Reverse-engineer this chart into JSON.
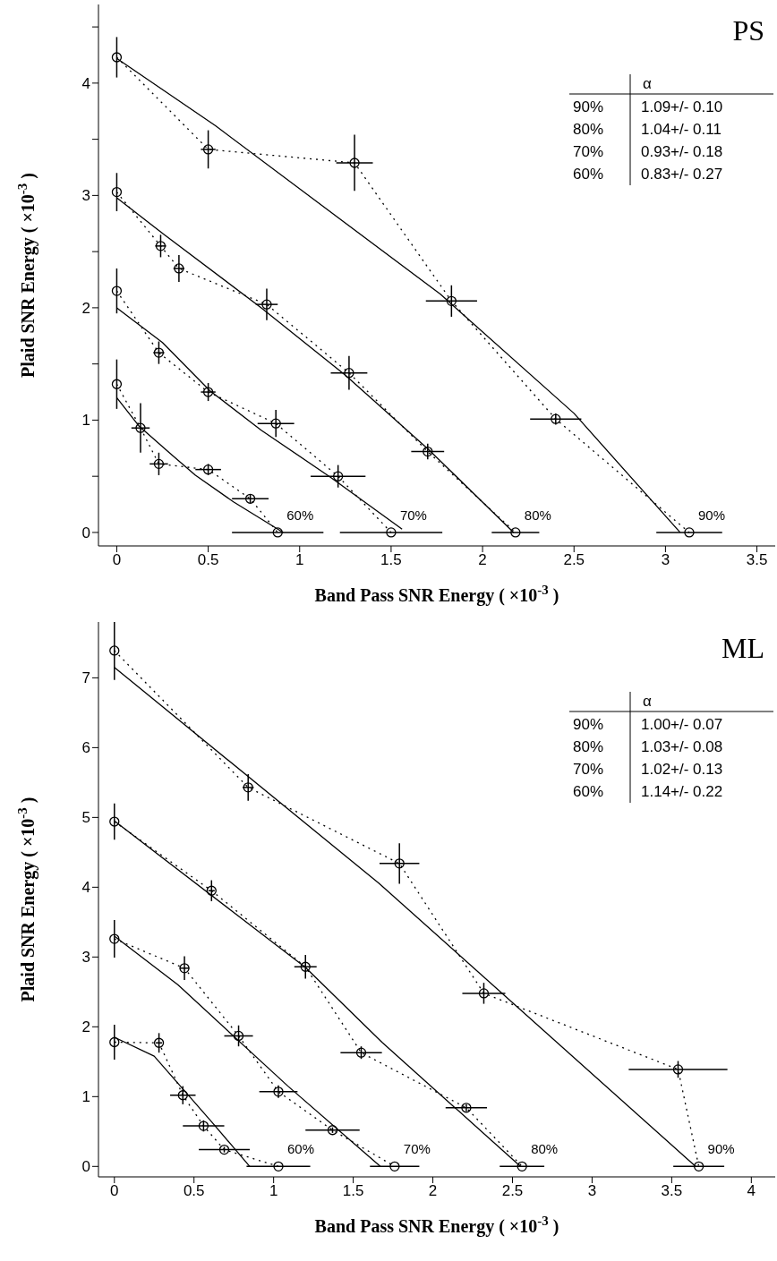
{
  "chart_data": [
    {
      "type": "line",
      "title": "PS",
      "xlabel": "Band Pass SNR Energy ( ×10$^{-3}$ )",
      "ylabel": "Plaid SNR Energy ( ×10$^{-3}$ )",
      "xlim": [
        -0.1,
        3.6
      ],
      "ylim": [
        -0.12,
        4.7
      ],
      "xticks": [
        0,
        0.5,
        1,
        1.5,
        2,
        2.5,
        3,
        3.5
      ],
      "yticks": [
        0,
        {
          "value": 0.5,
          "label": null
        },
        1,
        {
          "value": 1.5,
          "label": null
        },
        2,
        {
          "value": 2.5,
          "label": null
        },
        3,
        {
          "value": 3.5,
          "label": null
        },
        4,
        {
          "value": 4.5,
          "label": null
        }
      ],
      "annotations": [
        "α",
        "90%",
        "1.09+/- 0.10",
        "80%",
        "1.04+/- 0.11",
        "70%",
        "0.93+/- 0.18",
        "60%",
        "0.83+/- 0.27",
        {
          "text": "60%",
          "x": 0.88,
          "y": 0
        },
        {
          "text": "70%",
          "x": 1.5,
          "y": 0
        },
        {
          "text": "80%",
          "x": 2.18,
          "y": 0
        },
        {
          "text": "90%",
          "x": 3.13,
          "y": 0
        }
      ],
      "series": [
        {
          "color": "#000000",
          "line_style": "dotted",
          "marker": "circle",
          "x": [
            0,
            0.5,
            1.3,
            1.83,
            2.4,
            3.13
          ],
          "values": [
            4.23,
            3.41,
            3.29,
            2.06,
            1.01,
            0
          ],
          "errors": [
            0.18,
            0.17,
            0.25,
            0.14,
            0.05,
            null
          ],
          "xerrors": [
            null,
            0.04,
            0.1,
            0.14,
            0.14,
            0.18
          ]
        },
        {
          "color": "#000000",
          "line_style": "dotted",
          "marker": "circle",
          "x": [
            0,
            0.24,
            0.34,
            0.82,
            1.27,
            1.7,
            2.18
          ],
          "values": [
            3.03,
            2.55,
            2.35,
            2.03,
            1.42,
            0.72,
            0
          ],
          "errors": [
            0.17,
            0.1,
            0.12,
            0.14,
            0.15,
            0.07,
            null
          ],
          "xerrors": [
            null,
            0.03,
            0.03,
            0.06,
            0.1,
            0.09,
            0.13
          ]
        },
        {
          "color": "#000000",
          "line_style": "dotted",
          "marker": "circle",
          "x": [
            0,
            0.23,
            0.5,
            0.87,
            1.21,
            1.5
          ],
          "values": [
            2.15,
            1.6,
            1.25,
            0.97,
            0.5,
            0
          ],
          "errors": [
            0.2,
            0.1,
            0.08,
            0.12,
            0.1,
            null
          ],
          "xerrors": [
            null,
            0.03,
            0.04,
            0.1,
            0.15,
            0.28
          ]
        },
        {
          "color": "#000000",
          "line_style": "dotted",
          "marker": "circle",
          "x": [
            0,
            0.13,
            0.23,
            0.5,
            0.73,
            0.88
          ],
          "values": [
            1.32,
            0.93,
            0.61,
            0.56,
            0.3,
            0
          ],
          "errors": [
            0.22,
            0.22,
            0.1,
            0.05,
            0.04,
            null
          ],
          "xerrors": [
            null,
            0.05,
            0.05,
            0.07,
            0.1,
            0.25
          ]
        },
        {
          "color": "#000000",
          "line_style": "solid",
          "marker": "none",
          "x": [
            0,
            0.54,
            1.77,
            2.5,
            3.08
          ],
          "values": [
            4.22,
            3.62,
            2.12,
            1.06,
            0
          ]
        },
        {
          "color": "#000000",
          "line_style": "solid",
          "marker": "none",
          "x": [
            0,
            0.26,
            0.79,
            1.25,
            1.71,
            2.17
          ],
          "values": [
            2.98,
            2.65,
            2.0,
            1.4,
            0.73,
            0
          ]
        },
        {
          "color": "#000000",
          "line_style": "solid",
          "marker": "none",
          "x": [
            0,
            0.25,
            0.51,
            0.79,
            1.17,
            1.56
          ],
          "values": [
            2.0,
            1.69,
            1.26,
            0.91,
            0.49,
            0.03
          ]
        },
        {
          "color": "#000000",
          "line_style": "solid",
          "marker": "none",
          "x": [
            0,
            0.12,
            0.28,
            0.43,
            0.64,
            0.91
          ],
          "values": [
            1.2,
            0.95,
            0.72,
            0.51,
            0.27,
            0
          ]
        }
      ]
    },
    {
      "type": "line",
      "title": "ML",
      "xlabel": "Band Pass SNR Energy ( ×10$^{-3}$ )",
      "ylabel": "Plaid SNR Energy ( ×10$^{-3}$ )",
      "xlim": [
        -0.1,
        4.15
      ],
      "ylim": [
        -0.15,
        7.8
      ],
      "xticks": [
        0,
        0.5,
        1,
        1.5,
        2,
        2.5,
        3,
        3.5,
        4
      ],
      "yticks": [
        0,
        1,
        2,
        3,
        4,
        5,
        6,
        7
      ],
      "annotations": [
        "α",
        "90%",
        "1.00+/- 0.07",
        "80%",
        "1.03+/- 0.08",
        "70%",
        "1.02+/- 0.13",
        "60%",
        "1.14+/- 0.22",
        {
          "text": "60%",
          "x": 1.03,
          "y": 0
        },
        {
          "text": "70%",
          "x": 1.76,
          "y": 0
        },
        {
          "text": "80%",
          "x": 2.56,
          "y": 0
        },
        {
          "text": "90%",
          "x": 3.67,
          "y": 0
        }
      ],
      "series": [
        {
          "color": "#000000",
          "line_style": "dotted",
          "marker": "circle",
          "x": [
            0,
            0.84,
            1.79,
            2.32,
            3.54,
            3.67
          ],
          "values": [
            7.39,
            5.43,
            4.34,
            2.48,
            1.39,
            0
          ],
          "errors": [
            0.42,
            0.19,
            0.29,
            0.15,
            0.12,
            null
          ],
          "xerrors": [
            null,
            0.035,
            0.125,
            0.135,
            0.31,
            0.16
          ]
        },
        {
          "color": "#000000",
          "line_style": "dotted",
          "marker": "circle",
          "x": [
            0,
            0.61,
            1.2,
            1.55,
            2.21,
            2.56
          ],
          "values": [
            4.94,
            3.95,
            2.86,
            1.63,
            0.84,
            0
          ],
          "errors": [
            0.26,
            0.15,
            0.17,
            0.09,
            0.05,
            null
          ],
          "xerrors": [
            null,
            0.02,
            0.07,
            0.13,
            0.13,
            0.14
          ]
        },
        {
          "color": "#000000",
          "line_style": "dotted",
          "marker": "circle",
          "x": [
            0,
            0.44,
            0.78,
            1.03,
            1.37,
            1.76
          ],
          "values": [
            3.26,
            2.84,
            1.87,
            1.07,
            0.52,
            0
          ],
          "errors": [
            0.27,
            0.17,
            0.15,
            0.09,
            0.04,
            null
          ],
          "xerrors": [
            null,
            0.03,
            0.09,
            0.12,
            0.17,
            0.155
          ]
        },
        {
          "color": "#000000",
          "line_style": "dotted",
          "marker": "circle",
          "x": [
            0,
            0.28,
            0.43,
            0.56,
            0.69,
            1.03
          ],
          "values": [
            1.78,
            1.77,
            1.02,
            0.58,
            0.24,
            0
          ],
          "errors": [
            0.25,
            0.14,
            0.13,
            0.08,
            0.04,
            null
          ],
          "xerrors": [
            null,
            0.02,
            0.08,
            0.13,
            0.16,
            0.2
          ]
        },
        {
          "color": "#000000",
          "line_style": "solid",
          "marker": "none",
          "x": [
            0,
            1.66,
            3.65
          ],
          "values": [
            7.15,
            4.06,
            0
          ]
        },
        {
          "color": "#000000",
          "line_style": "solid",
          "marker": "none",
          "x": [
            0,
            1.2,
            1.68,
            2.55
          ],
          "values": [
            4.95,
            2.85,
            1.78,
            0
          ]
        },
        {
          "color": "#000000",
          "line_style": "solid",
          "marker": "none",
          "x": [
            0,
            0.4,
            1.09,
            1.67
          ],
          "values": [
            3.3,
            2.6,
            1.15,
            0
          ]
        },
        {
          "color": "#000000",
          "line_style": "solid",
          "marker": "none",
          "x": [
            0,
            0.25,
            0.61,
            0.85
          ],
          "values": [
            1.85,
            1.58,
            0.64,
            0
          ]
        }
      ]
    }
  ]
}
